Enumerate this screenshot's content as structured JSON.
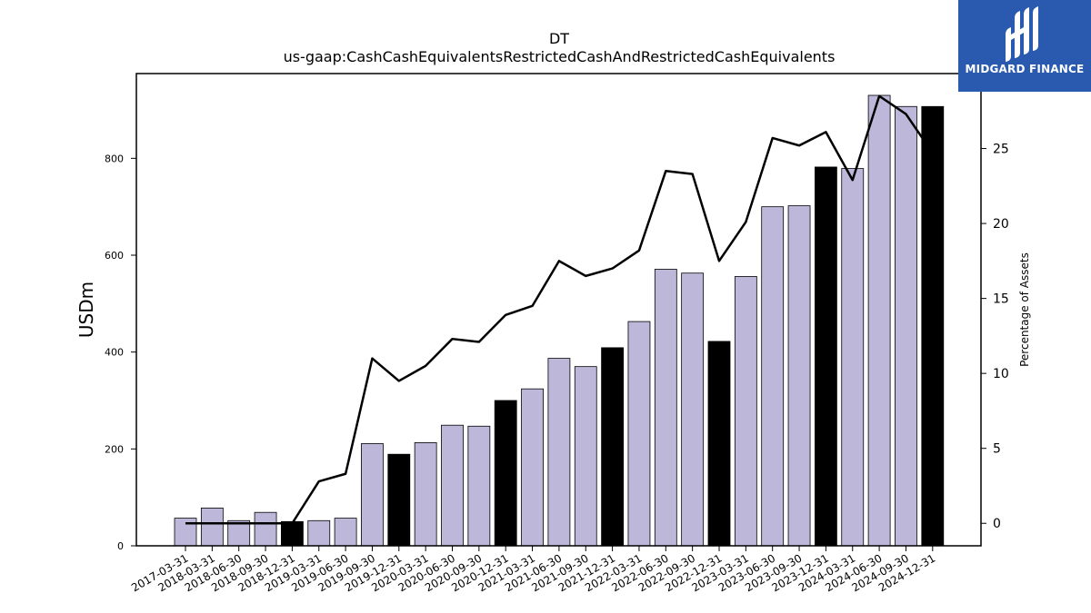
{
  "brand": {
    "name": "MIDGARD FINANCE",
    "logo_icon": "midgard-m-logo-icon",
    "background_color": "#2a5ab0"
  },
  "chart_data": {
    "type": "bar",
    "title": "DT",
    "subtitle": "us-gaap:CashCashEquivalentsRestrictedCashAndRestrictedCashEquivalents",
    "ylabel": "USDm",
    "y2label": "Percentage of Assets",
    "ylim": [
      0,
      975
    ],
    "y2lim": [
      -1.5,
      30
    ],
    "yticks": [
      0,
      200,
      400,
      600,
      800
    ],
    "y2ticks": [
      0,
      5,
      10,
      15,
      20,
      25
    ],
    "grid": false,
    "colors": {
      "bar": "#bdb8d9",
      "highlight_bar": "#000000",
      "line": "#000000",
      "edge": "#000000"
    },
    "categories": [
      "2017-03-31",
      "2018-03-31",
      "2018-06-30",
      "2018-09-30",
      "2018-12-31",
      "2019-03-31",
      "2019-06-30",
      "2019-09-30",
      "2019-12-31",
      "2020-03-31",
      "2020-06-30",
      "2020-09-30",
      "2020-12-31",
      "2021-03-31",
      "2021-06-30",
      "2021-09-30",
      "2021-12-31",
      "2022-03-31",
      "2022-06-30",
      "2022-09-30",
      "2022-12-31",
      "2023-03-31",
      "2023-06-30",
      "2023-09-30",
      "2023-12-31",
      "2024-03-31",
      "2024-06-30",
      "2024-09-30",
      "2024-12-31"
    ],
    "series": [
      {
        "type": "bar",
        "values": [
          57,
          78,
          52,
          69,
          50,
          52,
          57,
          211,
          189,
          213,
          249,
          247,
          300,
          324,
          387,
          370,
          409,
          463,
          571,
          563,
          422,
          556,
          700,
          702,
          782,
          779,
          930,
          907,
          907
        ],
        "highlight": [
          false,
          false,
          false,
          false,
          true,
          false,
          false,
          false,
          true,
          false,
          false,
          false,
          true,
          false,
          false,
          false,
          true,
          false,
          false,
          false,
          true,
          false,
          false,
          false,
          true,
          false,
          false,
          false,
          true
        ]
      },
      {
        "type": "line",
        "axis": "right",
        "values": [
          0,
          0,
          0,
          0,
          0,
          2.8,
          3.3,
          11.0,
          9.5,
          10.5,
          12.3,
          12.1,
          13.9,
          14.5,
          17.5,
          16.5,
          17.0,
          18.2,
          23.5,
          23.3,
          17.5,
          20.1,
          25.7,
          25.2,
          26.1,
          22.9,
          28.5,
          27.3,
          24.7
        ]
      }
    ]
  }
}
